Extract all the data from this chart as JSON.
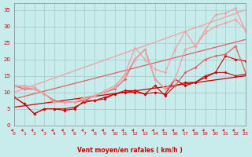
{
  "background_color": "#c8ecec",
  "grid_color": "#a0c8c8",
  "xlabel": "Vent moyen/en rafales ( km/h )",
  "xlabel_color": "#cc0000",
  "tick_color": "#cc0000",
  "ylabel_color": "#cc0000",
  "xlim": [
    0,
    23
  ],
  "ylim": [
    0,
    37
  ],
  "yticks": [
    0,
    5,
    10,
    15,
    20,
    25,
    30,
    35
  ],
  "xticks": [
    0,
    1,
    2,
    3,
    4,
    5,
    6,
    7,
    8,
    9,
    10,
    11,
    12,
    13,
    14,
    15,
    16,
    17,
    18,
    19,
    20,
    21,
    22,
    23
  ],
  "lines": [
    {
      "x": [
        0,
        1,
        2,
        3,
        4,
        5,
        6,
        7,
        8,
        9,
        10,
        11,
        12,
        13,
        14,
        15,
        16,
        17,
        18,
        19,
        20,
        21,
        22,
        23
      ],
      "y": [
        8.5,
        6.5,
        3.5,
        5,
        5,
        4.5,
        5,
        7.5,
        7.5,
        8,
        9.5,
        10.5,
        10.5,
        9.5,
        10,
        9.5,
        14,
        12,
        13,
        15,
        16,
        16,
        15,
        15.5
      ],
      "color": "#cc0000",
      "lw": 0.8,
      "marker": "D",
      "ms": 2.0
    },
    {
      "x": [
        0,
        1,
        2,
        3,
        4,
        5,
        6,
        7,
        8,
        9,
        10,
        11,
        12,
        13,
        14,
        15,
        16,
        17,
        18,
        19,
        20,
        21,
        22,
        23
      ],
      "y": [
        8.5,
        6.5,
        3.5,
        5,
        5,
        5,
        5.5,
        7,
        7.5,
        8.5,
        9.5,
        10,
        10,
        9.5,
        12,
        9,
        12,
        13,
        13,
        14.5,
        16,
        21,
        20,
        19.5
      ],
      "color": "#cc0000",
      "lw": 0.8,
      "marker": "D",
      "ms": 2.0
    },
    {
      "x": [
        0,
        23
      ],
      "y": [
        5.5,
        15
      ],
      "color": "#cc0000",
      "lw": 0.9,
      "marker": null,
      "ms": 0
    },
    {
      "x": [
        0,
        1,
        2,
        3,
        4,
        5,
        6,
        7,
        8,
        9,
        10,
        11,
        12,
        13,
        14,
        15,
        16,
        17,
        18,
        19,
        20,
        21,
        22,
        23
      ],
      "y": [
        12,
        11,
        11,
        9.5,
        7.5,
        7,
        7,
        7.5,
        9,
        10,
        11,
        14,
        20,
        23,
        14,
        11,
        12,
        16,
        17.5,
        20,
        21,
        21.5,
        24,
        16
      ],
      "color": "#e06060",
      "lw": 0.9,
      "marker": "D",
      "ms": 2.0
    },
    {
      "x": [
        0,
        23
      ],
      "y": [
        8,
        26
      ],
      "color": "#e06060",
      "lw": 0.9,
      "marker": null,
      "ms": 0
    },
    {
      "x": [
        0,
        1,
        2,
        3,
        4,
        5,
        6,
        7,
        8,
        9,
        10,
        11,
        12,
        13,
        14,
        15,
        16,
        17,
        18,
        19,
        20,
        21,
        22,
        23
      ],
      "y": [
        12,
        12,
        11.5,
        9.5,
        7,
        7,
        7,
        8,
        9,
        10,
        11.5,
        15.5,
        23.5,
        20,
        17,
        16,
        23,
        28.5,
        24,
        29,
        33.5,
        34,
        35.5,
        28.5
      ],
      "color": "#f0a0a0",
      "lw": 0.9,
      "marker": "D",
      "ms": 2.0
    },
    {
      "x": [
        0,
        1,
        2,
        3,
        4,
        5,
        6,
        7,
        8,
        9,
        10,
        11,
        12,
        13,
        14,
        15,
        16,
        17,
        18,
        19,
        20,
        21,
        22,
        23
      ],
      "y": [
        12,
        11.5,
        11,
        9.5,
        7,
        7,
        7,
        8.5,
        9,
        10.5,
        12,
        15,
        20,
        23,
        14,
        11,
        14,
        23,
        24,
        28,
        30,
        31,
        32,
        29
      ],
      "color": "#f0a0a0",
      "lw": 0.9,
      "marker": "D",
      "ms": 2.0
    },
    {
      "x": [
        0,
        23
      ],
      "y": [
        10,
        35
      ],
      "color": "#f0a0a0",
      "lw": 0.9,
      "marker": null,
      "ms": 0
    }
  ],
  "arrow_color": "#cc0000",
  "spine_color": "#888888"
}
